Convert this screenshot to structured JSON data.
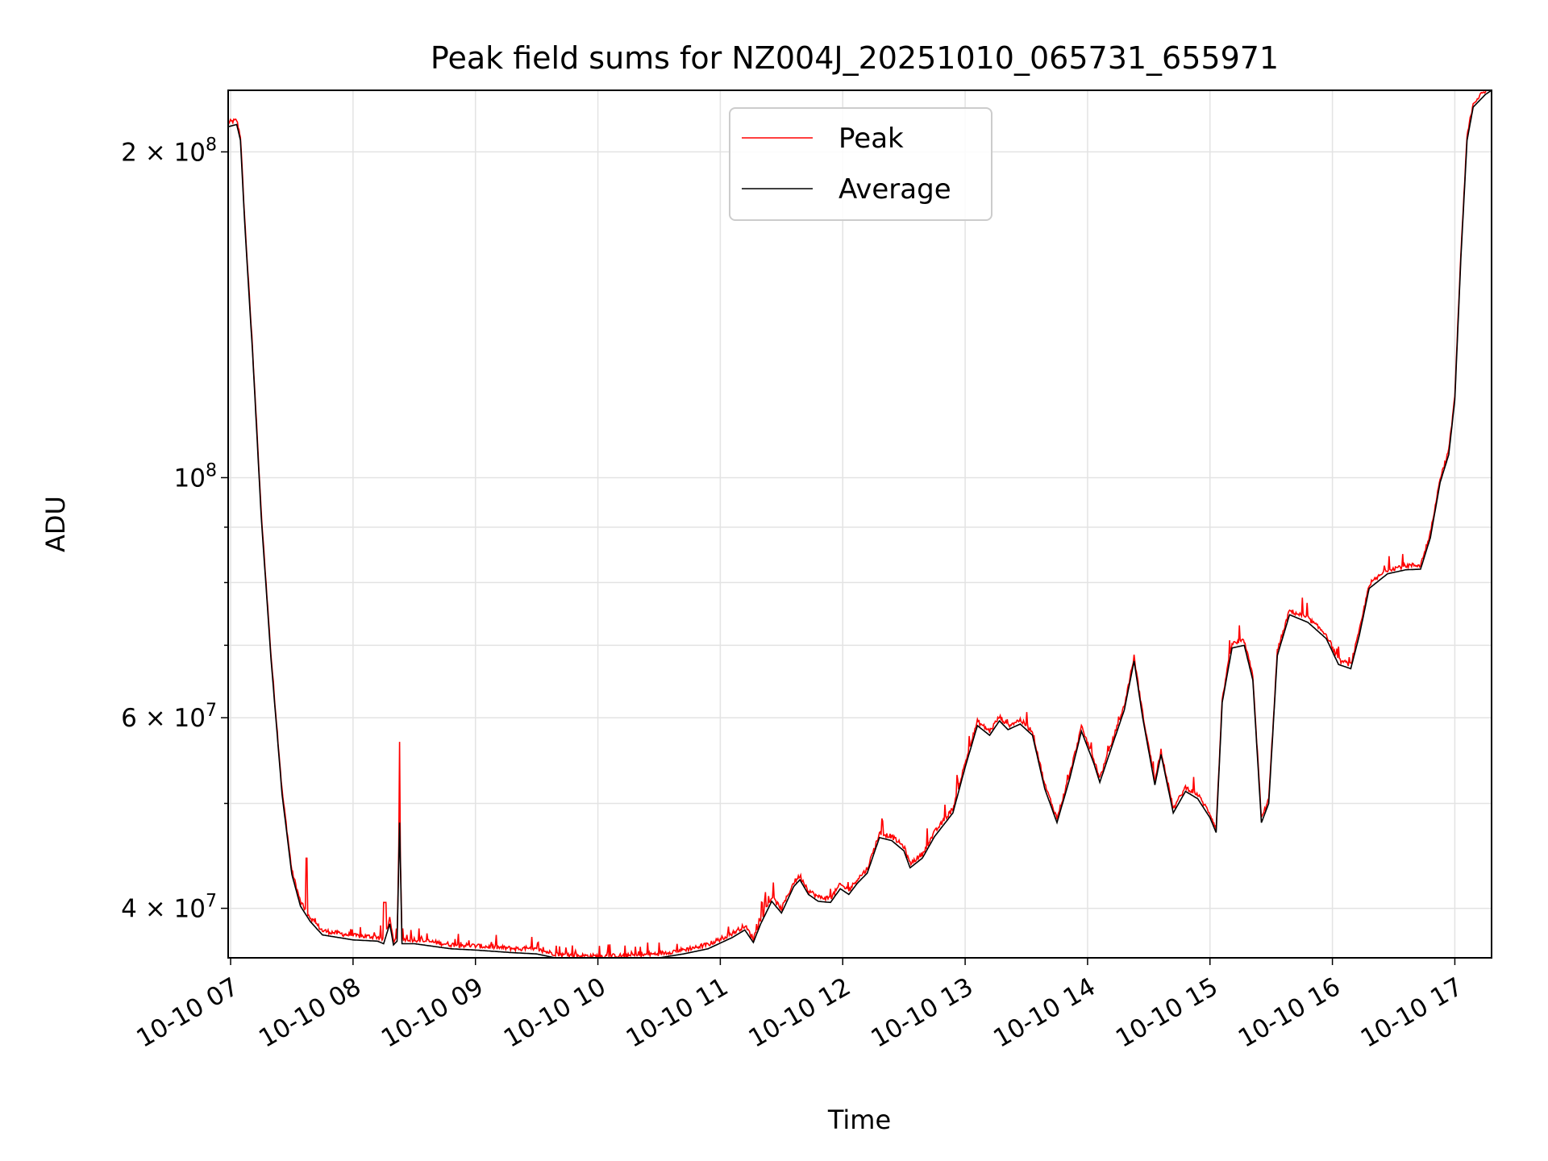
{
  "chart_data": {
    "type": "line",
    "title": "Peak field sums for NZ004J_20251010_065731_655971",
    "xlabel": "Time",
    "ylabel": "ADU",
    "yscale": "log",
    "ylim": [
      36000000,
      228000000
    ],
    "xlim": [
      6.98,
      17.3
    ],
    "grid": true,
    "legend_position": "top-center",
    "x_ticks": [
      {
        "value": 7,
        "label": "10-10 07"
      },
      {
        "value": 8,
        "label": "10-10 08"
      },
      {
        "value": 9,
        "label": "10-10 09"
      },
      {
        "value": 10,
        "label": "10-10 10"
      },
      {
        "value": 11,
        "label": "10-10 11"
      },
      {
        "value": 12,
        "label": "10-10 12"
      },
      {
        "value": 13,
        "label": "10-10 13"
      },
      {
        "value": 14,
        "label": "10-10 14"
      },
      {
        "value": 15,
        "label": "10-10 15"
      },
      {
        "value": 16,
        "label": "10-10 16"
      },
      {
        "value": 17,
        "label": "10-10 17"
      }
    ],
    "y_ticks": [
      {
        "value": 40000000,
        "base": "4 × 10",
        "exp": "7"
      },
      {
        "value": 60000000,
        "base": "6 × 10",
        "exp": "7"
      },
      {
        "value": 100000000,
        "base": "10",
        "exp": "8"
      },
      {
        "value": 200000000,
        "base": "2 × 10",
        "exp": "8"
      }
    ],
    "y_minor_ticks": [
      50000000,
      70000000,
      80000000,
      90000000
    ],
    "series": [
      {
        "name": "Peak",
        "color": "#ff0000"
      },
      {
        "name": "Average",
        "color": "#000000"
      }
    ],
    "average_points": [
      [
        6.98,
        211000000
      ],
      [
        7.05,
        212000000
      ],
      [
        7.08,
        205000000
      ],
      [
        7.12,
        168000000
      ],
      [
        7.18,
        130000000
      ],
      [
        7.25,
        92000000
      ],
      [
        7.33,
        68000000
      ],
      [
        7.42,
        51000000
      ],
      [
        7.5,
        43000000
      ],
      [
        7.57,
        40200000
      ],
      [
        7.65,
        38900000
      ],
      [
        7.75,
        37800000
      ],
      [
        8.0,
        37400000
      ],
      [
        8.2,
        37300000
      ],
      [
        8.25,
        37100000
      ],
      [
        8.3,
        38700000
      ],
      [
        8.33,
        37000000
      ],
      [
        8.36,
        37300000
      ],
      [
        8.38,
        48000000
      ],
      [
        8.4,
        37100000
      ],
      [
        8.5,
        37100000
      ],
      [
        8.8,
        36700000
      ],
      [
        9.0,
        36600000
      ],
      [
        9.3,
        36400000
      ],
      [
        9.5,
        36300000
      ],
      [
        9.7,
        35900000
      ],
      [
        10.0,
        35800000
      ],
      [
        10.3,
        35850000
      ],
      [
        10.5,
        36000000
      ],
      [
        10.7,
        36300000
      ],
      [
        10.9,
        36700000
      ],
      [
        11.1,
        37600000
      ],
      [
        11.2,
        38200000
      ],
      [
        11.27,
        37200000
      ],
      [
        11.33,
        38700000
      ],
      [
        11.42,
        40600000
      ],
      [
        11.5,
        39600000
      ],
      [
        11.6,
        41900000
      ],
      [
        11.65,
        42500000
      ],
      [
        11.72,
        41200000
      ],
      [
        11.8,
        40600000
      ],
      [
        11.9,
        40500000
      ],
      [
        11.98,
        41700000
      ],
      [
        12.05,
        41200000
      ],
      [
        12.12,
        42200000
      ],
      [
        12.2,
        43100000
      ],
      [
        12.3,
        46500000
      ],
      [
        12.4,
        46200000
      ],
      [
        12.5,
        45200000
      ],
      [
        12.55,
        43600000
      ],
      [
        12.65,
        44500000
      ],
      [
        12.75,
        46600000
      ],
      [
        12.9,
        49000000
      ],
      [
        13.0,
        54000000
      ],
      [
        13.1,
        59000000
      ],
      [
        13.2,
        57800000
      ],
      [
        13.28,
        59600000
      ],
      [
        13.35,
        58500000
      ],
      [
        13.45,
        59200000
      ],
      [
        13.55,
        57800000
      ],
      [
        13.65,
        51600000
      ],
      [
        13.75,
        48000000
      ],
      [
        13.85,
        52500000
      ],
      [
        13.95,
        58300000
      ],
      [
        14.05,
        54500000
      ],
      [
        14.1,
        52300000
      ],
      [
        14.2,
        56500000
      ],
      [
        14.3,
        61000000
      ],
      [
        14.38,
        67700000
      ],
      [
        14.45,
        60000000
      ],
      [
        14.55,
        52000000
      ],
      [
        14.6,
        55500000
      ],
      [
        14.7,
        49000000
      ],
      [
        14.8,
        51300000
      ],
      [
        14.9,
        50500000
      ],
      [
        15.0,
        48500000
      ],
      [
        15.05,
        47000000
      ],
      [
        15.1,
        62000000
      ],
      [
        15.18,
        69600000
      ],
      [
        15.28,
        70000000
      ],
      [
        15.35,
        65000000
      ],
      [
        15.42,
        48000000
      ],
      [
        15.48,
        50000000
      ],
      [
        15.55,
        68500000
      ],
      [
        15.65,
        74700000
      ],
      [
        15.8,
        73500000
      ],
      [
        15.95,
        71000000
      ],
      [
        16.05,
        67200000
      ],
      [
        16.15,
        66600000
      ],
      [
        16.22,
        71500000
      ],
      [
        16.3,
        79000000
      ],
      [
        16.45,
        81500000
      ],
      [
        16.6,
        82200000
      ],
      [
        16.72,
        82300000
      ],
      [
        16.8,
        88000000
      ],
      [
        16.88,
        99000000
      ],
      [
        16.95,
        105000000
      ],
      [
        17.0,
        118000000
      ],
      [
        17.05,
        160000000
      ],
      [
        17.1,
        205000000
      ],
      [
        17.15,
        220000000
      ],
      [
        17.25,
        226000000
      ],
      [
        17.3,
        228000000
      ]
    ]
  }
}
